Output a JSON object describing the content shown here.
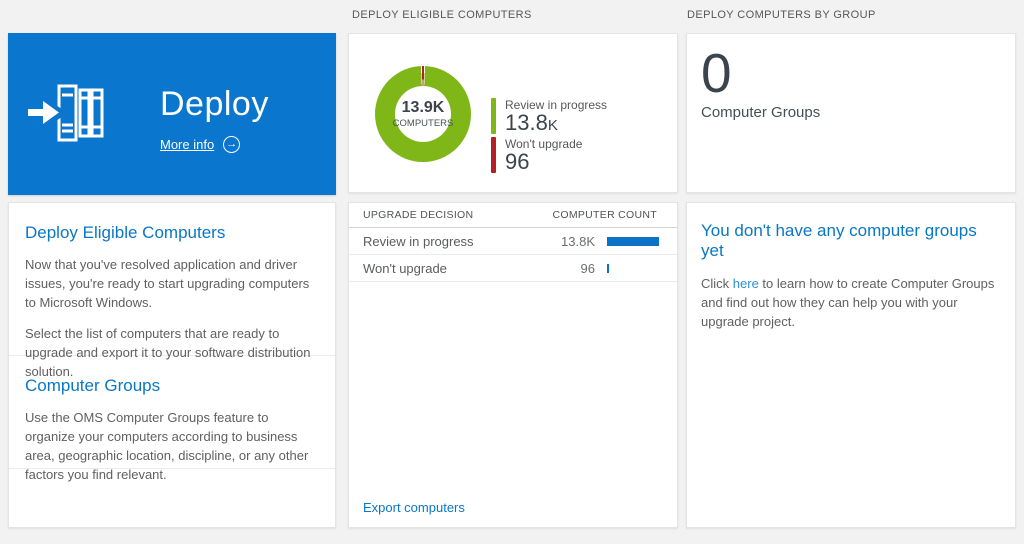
{
  "colors": {
    "page_bg": "#f2f2f2",
    "tile_blue": "#0b76cd",
    "accent_blue": "#0a77c6",
    "link_light_blue": "#2e90d0",
    "bar_blue": "#0b72c6",
    "green": "#7fb718",
    "red": "#b42025",
    "dark_text": "#3b444c",
    "body_text": "#5f6062"
  },
  "headers": {
    "middle": "DEPLOY ELIGIBLE COMPUTERS",
    "right": "DEPLOY COMPUTERS BY GROUP"
  },
  "left": {
    "tile": {
      "title": "Deploy",
      "more_info_label": "More info",
      "arrow_glyph": "→"
    },
    "sections": [
      {
        "heading": "Deploy Eligible Computers",
        "paragraphs": [
          "Now that you've resolved application and driver issues, you're ready to start upgrading computers to Microsoft Windows.",
          "Select the list of computers that are ready to upgrade and export it to your software distribution solution."
        ]
      },
      {
        "heading": "Computer Groups",
        "paragraphs": [
          "Use the OMS Computer Groups feature to organize your computers according to business area, geographic location, discipline, or any other factors you find relevant."
        ]
      }
    ]
  },
  "middle": {
    "donut": {
      "center_value": "13.9K",
      "center_label": "COMPUTERS"
    },
    "legend": [
      {
        "label": "Review in progress",
        "value": "13.8",
        "suffix": "K",
        "color": "#7fb718"
      },
      {
        "label": "Won't upgrade",
        "value": "96",
        "suffix": "",
        "color": "#b42025"
      }
    ],
    "table": {
      "columns": [
        "UPGRADE DECISION",
        "COMPUTER COUNT"
      ],
      "rows": [
        {
          "decision": "Review in progress",
          "count": "13.8K",
          "bar_pct": 84
        },
        {
          "decision": "Won't upgrade",
          "count": "96",
          "bar_pct": 3
        }
      ]
    },
    "export_label": "Export computers"
  },
  "right": {
    "count_value": "0",
    "count_label": "Computer Groups",
    "empty_heading": "You don't have any computer groups yet",
    "empty_text_before": "Click ",
    "empty_link_text": "here",
    "empty_text_after": " to learn how to create Computer Groups and find out how they can help you with your upgrade project."
  },
  "chart_data": {
    "type": "pie",
    "donut": true,
    "title": "DEPLOY ELIGIBLE COMPUTERS",
    "categories": [
      "Review in progress",
      "Won't upgrade"
    ],
    "values": [
      13800,
      96
    ],
    "colors": [
      "#7fb718",
      "#b42025"
    ],
    "center_label": "13.9K COMPUTERS",
    "legend_position": "right"
  }
}
